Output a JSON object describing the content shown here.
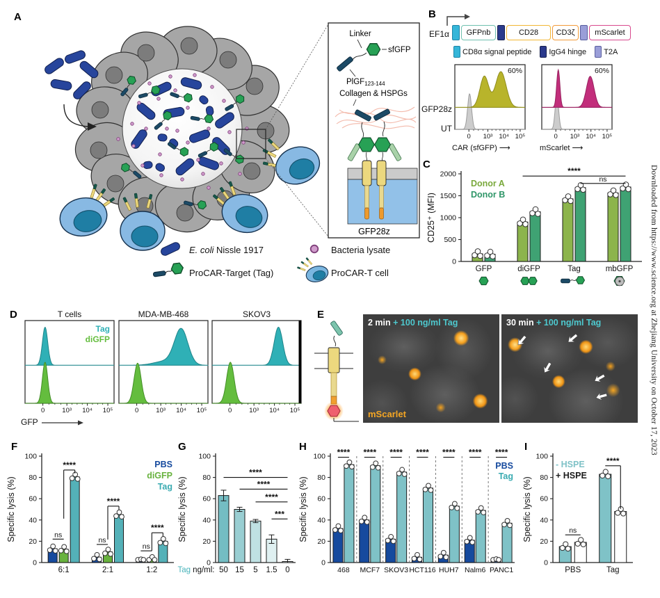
{
  "sidebar": {
    "text": "Downloaded from https://www.science.org at Zhejiang University on October 17, 2023"
  },
  "panelA": {
    "label": "A",
    "inset": {
      "linker": "Linker",
      "sfgfp": "sfGFP",
      "plgf": "PlGF",
      "plgf_sub": "123-144",
      "collagen": "Collagen & HSPGs",
      "car": "GFP28z"
    },
    "legend": {
      "ecoli_italic": "E. coli",
      "ecoli_rest": " Nissle 1917",
      "tag": "ProCAR-Target (Tag)",
      "lysate": "Bacteria lysate",
      "tcell": "ProCAR-T cell"
    }
  },
  "panelB": {
    "label": "B",
    "promoter": "EF1α",
    "construct": {
      "gfpnb": "GFPnb",
      "cd28": "CD28",
      "cd3z": "CD3ζ",
      "mscarlet": "mScarlet"
    },
    "legend": {
      "cd8a": "CD8α signal peptide",
      "igg4": "IgG4 hinge",
      "t2a": "T2A"
    },
    "rows": {
      "car": "GFP28z",
      "ut": "UT"
    },
    "xlabels": {
      "left": "CAR (sfGFP)",
      "right": "mScarlet"
    }
  },
  "panelC": {
    "label": "C"
  },
  "panelD": {
    "label": "D",
    "titles": [
      "T cells",
      "MDA-MB-468",
      "SKOV3"
    ],
    "legend": [
      {
        "label": "Tag",
        "color": "#2fb0b6"
      },
      {
        "label": "diGFP",
        "color": "#64bd3e"
      }
    ],
    "xlabel": "GFP"
  },
  "panelE": {
    "label": "E",
    "img1_time": "2 min",
    "img2_time": "30 min",
    "dose": "+ 100 ng/ml Tag",
    "fluor": "mScarlet"
  },
  "panelF": {
    "label": "F"
  },
  "panelG": {
    "label": "G"
  },
  "panelH": {
    "label": "H"
  },
  "panelI": {
    "label": "I"
  },
  "chart_data": [
    {
      "id": "B-left",
      "type": "histogram",
      "annotation": "60%",
      "xlabel": "CAR (sfGFP)",
      "xticks": [
        {
          "f": 0.2,
          "label": "0"
        },
        {
          "f": 0.47,
          "label": "10³"
        },
        {
          "f": 0.7,
          "label": "10⁴"
        },
        {
          "f": 0.93,
          "label": "10⁵"
        }
      ],
      "rows": [
        {
          "base": 0.66,
          "max": 0.6
        },
        {
          "base": 1.0,
          "max": 0.58
        }
      ],
      "row_lines": [
        "#b8b42b",
        null
      ],
      "peaks": [
        {
          "row": 0,
          "cx": 0.42,
          "s": 0.062,
          "h": 0.8,
          "color": "#b8b42b",
          "stroke": "#8f8c1d"
        },
        {
          "row": 0,
          "cx": 0.655,
          "s": 0.075,
          "h": 0.92,
          "color": "#b8b42b",
          "stroke": "#8f8c1d"
        },
        {
          "row": 1,
          "cx": 0.21,
          "s": 0.028,
          "h": 0.95,
          "color": "#cccccc",
          "stroke": "#9d9d9d"
        }
      ]
    },
    {
      "id": "B-right",
      "type": "histogram",
      "annotation": "60%",
      "xlabel": "mScarlet",
      "xticks": [
        {
          "f": 0.2,
          "label": "0"
        },
        {
          "f": 0.47,
          "label": "10³"
        },
        {
          "f": 0.7,
          "label": "10⁴"
        },
        {
          "f": 0.93,
          "label": "10⁵"
        }
      ],
      "rows": [
        {
          "base": 0.66,
          "max": 0.6
        },
        {
          "base": 1.0,
          "max": 0.58
        }
      ],
      "row_lines": [
        "#c22e7b",
        null
      ],
      "peaks": [
        {
          "row": 0,
          "cx": 0.235,
          "s": 0.023,
          "h": 0.97,
          "color": "#c22e7b",
          "stroke": "#97215e"
        },
        {
          "row": 0,
          "cx": 0.69,
          "s": 0.055,
          "h": 0.8,
          "color": "#c22e7b",
          "stroke": "#97215e"
        },
        {
          "row": 1,
          "cx": 0.215,
          "s": 0.024,
          "h": 0.95,
          "color": "#cccccc",
          "stroke": "#9d9d9d"
        }
      ]
    },
    {
      "id": "D-0",
      "type": "histogram",
      "title": "T cells",
      "xticks": [
        {
          "f": 0.2,
          "label": "0"
        },
        {
          "f": 0.47,
          "label": "10³"
        },
        {
          "f": 0.7,
          "label": "10⁴"
        },
        {
          "f": 0.93,
          "label": "10⁵"
        }
      ],
      "rows": [
        {
          "base": 0.54,
          "max": 0.5
        },
        {
          "base": 1.0,
          "max": 0.54
        }
      ],
      "row_lines": [
        "#a8dde0",
        null
      ],
      "peaks": [
        {
          "row": 0,
          "cx": 0.225,
          "s": 0.03,
          "h": 0.92,
          "color": "#2fb0b6",
          "stroke": "#1e8489"
        },
        {
          "row": 1,
          "cx": 0.225,
          "s": 0.03,
          "h": 0.92,
          "color": "#64bd3e",
          "stroke": "#448e27"
        }
      ]
    },
    {
      "id": "D-1",
      "type": "histogram",
      "title": "MDA-MB-468",
      "xticks": [
        {
          "f": 0.2,
          "label": "0"
        },
        {
          "f": 0.47,
          "label": "10³"
        },
        {
          "f": 0.7,
          "label": "10⁴"
        },
        {
          "f": 0.93,
          "label": "10⁵"
        }
      ],
      "rows": [
        {
          "base": 0.54,
          "max": 0.5
        },
        {
          "base": 1.0,
          "max": 0.54
        }
      ],
      "row_lines": [
        "#a8dde0",
        null
      ],
      "peaks": [
        {
          "row": 0,
          "cx": 0.7,
          "s": 0.075,
          "h": 0.85,
          "color": "#2fb0b6",
          "stroke": "#1e8489"
        },
        {
          "row": 0,
          "cx": 0.53,
          "s": 0.13,
          "h": 0.1,
          "color": "#2fb0b6",
          "stroke": "#1e8489"
        },
        {
          "row": 1,
          "cx": 0.21,
          "s": 0.04,
          "h": 0.9,
          "color": "#64bd3e",
          "stroke": "#448e27"
        }
      ]
    },
    {
      "id": "D-2",
      "type": "histogram",
      "title": "SKOV3",
      "thick_right": true,
      "xticks": [
        {
          "f": 0.2,
          "label": "0"
        },
        {
          "f": 0.47,
          "label": "10³"
        },
        {
          "f": 0.7,
          "label": "10⁴"
        },
        {
          "f": 0.93,
          "label": "10⁵"
        }
      ],
      "rows": [
        {
          "base": 0.54,
          "max": 0.5
        },
        {
          "base": 1.0,
          "max": 0.54
        }
      ],
      "row_lines": [
        "#a8dde0",
        null
      ],
      "peaks": [
        {
          "row": 0,
          "cx": 0.745,
          "s": 0.048,
          "h": 0.92,
          "color": "#2fb0b6",
          "stroke": "#1e8489"
        },
        {
          "row": 1,
          "cx": 0.205,
          "s": 0.042,
          "h": 0.92,
          "color": "#64bd3e",
          "stroke": "#448e27"
        }
      ]
    },
    {
      "id": "C",
      "type": "bar",
      "ylabel": "CD25⁺ (MFI)",
      "ylim": [
        0,
        2000
      ],
      "yticks": [
        0,
        500,
        1000,
        1500,
        2000
      ],
      "categories": [
        "GFP",
        "diGFP",
        "Tag",
        "mbGFP"
      ],
      "icons": [
        "gfp",
        "digfp",
        "tag",
        "mbgfp"
      ],
      "dots": true,
      "series": [
        {
          "name": "Donor A",
          "color": "#8cb44c",
          "values": [
            175,
            900,
            1430,
            1565
          ]
        },
        {
          "name": "Donor B",
          "color": "#3fa273",
          "values": [
            165,
            1135,
            1685,
            1700
          ]
        }
      ],
      "legend": {
        "pos": "top-left",
        "items": [
          {
            "label": "Donor A",
            "color": "#7aa93c"
          },
          {
            "label": "Donor B",
            "color": "#2f9668"
          }
        ]
      },
      "sig": [
        {
          "label": "****",
          "from": [
            1,
            0
          ],
          "to": [
            3,
            1
          ],
          "y": 1950
        },
        {
          "label": "ns",
          "from": [
            2,
            1
          ],
          "to": [
            3,
            1
          ],
          "y": 1780
        }
      ]
    },
    {
      "id": "F",
      "type": "bar",
      "ylabel": "Specific lysis (%)",
      "ylim": [
        0,
        100
      ],
      "yticks": [
        0,
        20,
        40,
        60,
        80,
        100
      ],
      "categories": [
        "6:1",
        "2:1",
        "1:2"
      ],
      "dots": true,
      "series": [
        {
          "name": "PBS",
          "color": "#164a9e",
          "values": [
            13,
            5,
            0.8
          ]
        },
        {
          "name": "diGFP",
          "color": "#68b23e",
          "values": [
            12.5,
            10,
            3
          ]
        },
        {
          "name": "Tag",
          "color": "#54b1b8",
          "values": [
            80.5,
            45,
            20
          ]
        }
      ],
      "legend": {
        "pos": "top-right",
        "items": [
          {
            "label": "PBS",
            "color": "#164a9e"
          },
          {
            "label": "diGFP",
            "color": "#68b23e"
          },
          {
            "label": "Tag",
            "color": "#3aabb1"
          }
        ]
      },
      "sig": [
        {
          "label": "ns",
          "from": [
            0,
            0
          ],
          "to": [
            0,
            1
          ],
          "y": 22
        },
        {
          "label": "****",
          "from": [
            0,
            1
          ],
          "to": [
            0,
            2
          ],
          "y": 87,
          "lt": 70,
          "rt": 5
        },
        {
          "label": "ns",
          "from": [
            1,
            0
          ],
          "to": [
            1,
            1
          ],
          "y": 17
        },
        {
          "label": "****",
          "from": [
            1,
            1
          ],
          "to": [
            1,
            2
          ],
          "y": 53,
          "lt": 48,
          "rt": 5
        },
        {
          "label": "ns",
          "from": [
            2,
            0
          ],
          "to": [
            2,
            1
          ],
          "y": 11
        },
        {
          "label": "****",
          "from": [
            2,
            1
          ],
          "to": [
            2,
            2
          ],
          "y": 28,
          "lt": 26,
          "rt": 5
        }
      ]
    },
    {
      "id": "G",
      "type": "bar",
      "ylabel": "Specific lysis (%)",
      "ylim": [
        0,
        100
      ],
      "yticks": [
        0,
        20,
        40,
        60,
        80,
        100
      ],
      "categories": [
        "50",
        "15",
        "5",
        "1.5",
        "0"
      ],
      "values": [
        63,
        50,
        39,
        22,
        1
      ],
      "errors": [
        5,
        2,
        1.5,
        4,
        2
      ],
      "bar_colors": [
        "#74bdc3",
        "#99ced2",
        "#bfe1e3",
        "#dff0f1",
        "#f3fafa"
      ],
      "x_prefix": {
        "accent": "Tag",
        "rest": " ng/ml:",
        "color": "#4ab4bb"
      },
      "sig": [
        {
          "label": "****",
          "from": 0,
          "to": 4,
          "y": 80
        },
        {
          "label": "****",
          "from": 1,
          "to": 4,
          "y": 69
        },
        {
          "label": "****",
          "from": 2,
          "to": 4,
          "y": 57
        },
        {
          "label": "***",
          "from": 3,
          "to": 4,
          "y": 41
        }
      ]
    },
    {
      "id": "H",
      "type": "bar",
      "ylabel": "Specific lysis (%)",
      "ylim": [
        0,
        100
      ],
      "yticks": [
        0,
        20,
        40,
        60,
        80,
        100
      ],
      "categories": [
        "468",
        "MCF7",
        "SKOV3",
        "HCT116",
        "HUH7",
        "Nalm6",
        "PANC1"
      ],
      "dots": true,
      "separators": true,
      "series": [
        {
          "name": "PBS",
          "color": "#164a9e",
          "values": [
            32,
            40,
            22,
            5,
            7,
            21,
            1
          ]
        },
        {
          "name": "Tag",
          "color": "#7fc2c7",
          "values": [
            92,
            91,
            85,
            70,
            53,
            49,
            37
          ]
        }
      ],
      "legend": {
        "pos": "top-right",
        "items": [
          {
            "label": "PBS",
            "color": "#164a9e"
          },
          {
            "label": "Tag",
            "color": "#3aabb1"
          }
        ]
      },
      "sig": [
        {
          "label": "****",
          "from": [
            0,
            0
          ],
          "to": [
            0,
            1
          ],
          "y": 99
        },
        {
          "label": "****",
          "from": [
            1,
            0
          ],
          "to": [
            1,
            1
          ],
          "y": 99
        },
        {
          "label": "****",
          "from": [
            2,
            0
          ],
          "to": [
            2,
            1
          ],
          "y": 99
        },
        {
          "label": "****",
          "from": [
            3,
            0
          ],
          "to": [
            3,
            1
          ],
          "y": 99
        },
        {
          "label": "****",
          "from": [
            4,
            0
          ],
          "to": [
            4,
            1
          ],
          "y": 99
        },
        {
          "label": "****",
          "from": [
            5,
            0
          ],
          "to": [
            5,
            1
          ],
          "y": 99
        },
        {
          "label": "****",
          "from": [
            6,
            0
          ],
          "to": [
            6,
            1
          ],
          "y": 99
        }
      ]
    },
    {
      "id": "I",
      "type": "bar",
      "ylabel": "Specific lysis (%)",
      "ylim": [
        0,
        100
      ],
      "yticks": [
        0,
        20,
        40,
        60,
        80,
        100
      ],
      "categories": [
        "PBS",
        "Tag"
      ],
      "dots": true,
      "series": [
        {
          "name": "- HSPE",
          "color": "#7fc2c7",
          "values": [
            15,
            83
          ]
        },
        {
          "name": "+ HSPE",
          "color": "#ffffff",
          "stroke": "#1c1c1c",
          "values": [
            19,
            48
          ]
        }
      ],
      "legend": {
        "pos": "top-left",
        "items": [
          {
            "label": "- HSPE",
            "color": "#7fc2c7"
          },
          {
            "label": "+ HSPE",
            "color": "#1c1c1c"
          }
        ]
      },
      "sig": [
        {
          "label": "ns",
          "from": [
            0,
            0
          ],
          "to": [
            0,
            1
          ],
          "y": 26
        },
        {
          "label": "****",
          "from": [
            1,
            0
          ],
          "to": [
            1,
            1
          ],
          "y": 91,
          "rt": 62
        }
      ]
    }
  ]
}
